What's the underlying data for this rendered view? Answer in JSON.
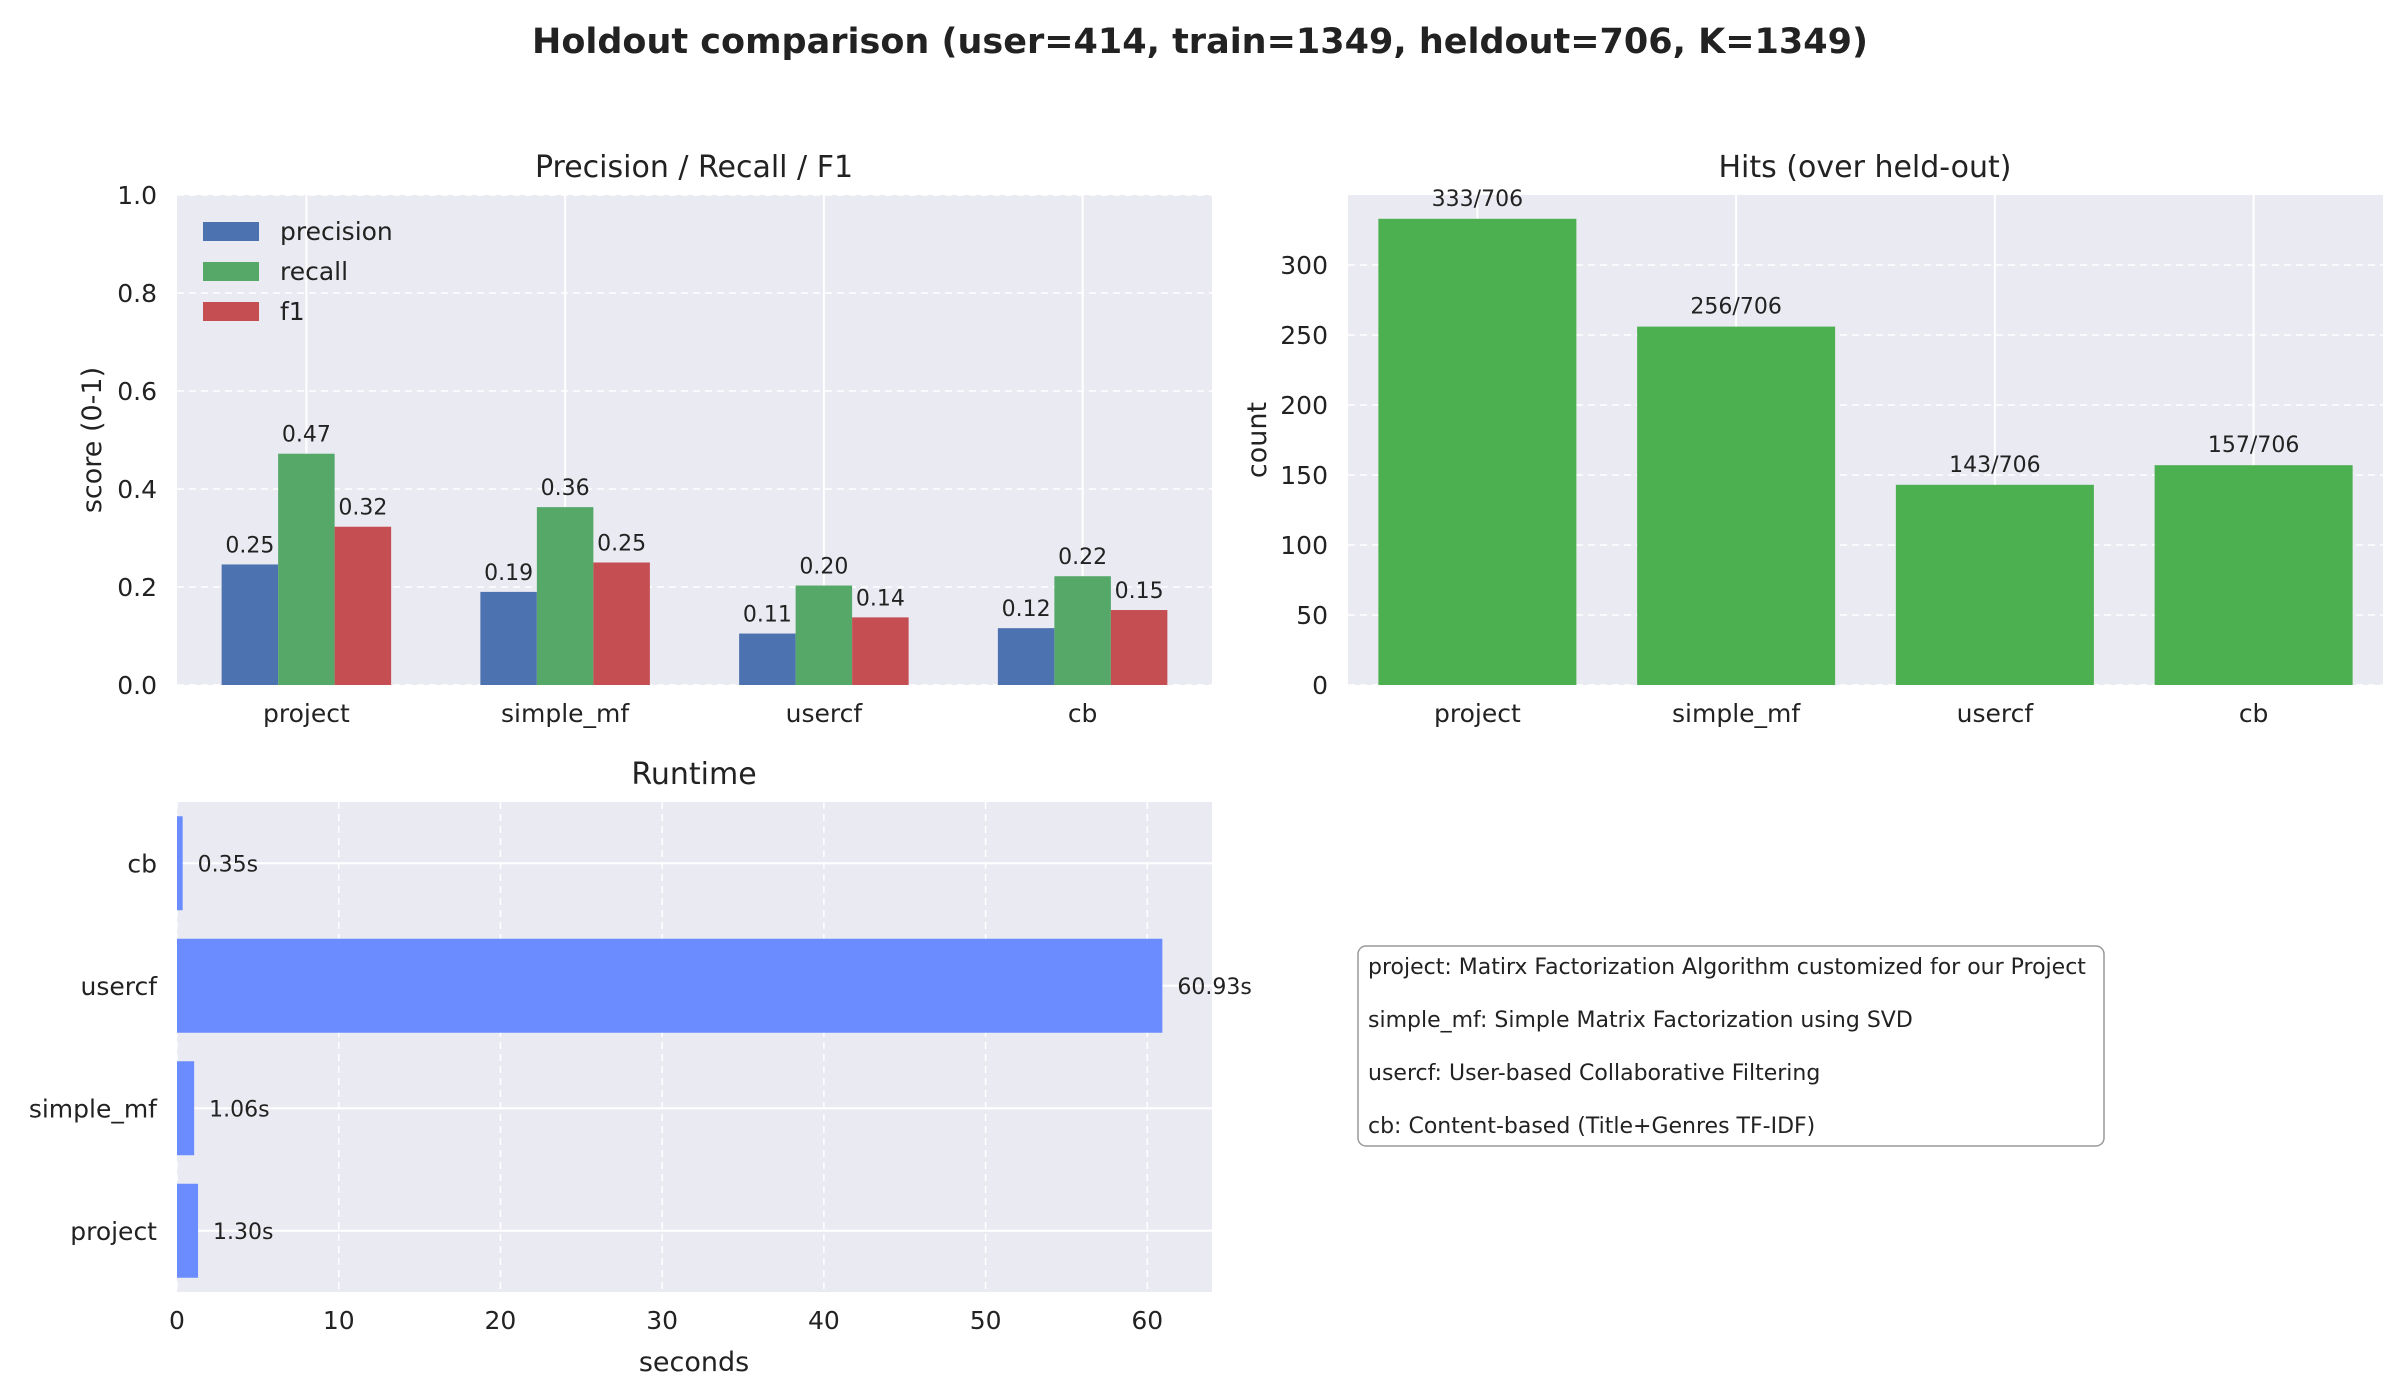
{
  "figure": {
    "title": "Holdout comparison (user=414, train=1349, heldout=706, K=1349)"
  },
  "chart_data": [
    {
      "id": "prf",
      "type": "bar",
      "title": "Precision / Recall / F1",
      "xlabel": "",
      "ylabel": "score (0-1)",
      "ylim": [
        0,
        1
      ],
      "yticks": [
        "0.0",
        "0.2",
        "0.4",
        "0.6",
        "0.8",
        "1.0"
      ],
      "grid": true,
      "legend_position": "top-left",
      "categories": [
        "project",
        "simple_mf",
        "usercf",
        "cb"
      ],
      "series": [
        {
          "name": "precision",
          "color": "#4c72b0",
          "values": [
            0.246,
            0.19,
            0.105,
            0.116
          ],
          "labels": [
            "0.25",
            "0.19",
            "0.11",
            "0.12"
          ]
        },
        {
          "name": "recall",
          "color": "#55a868",
          "values": [
            0.472,
            0.363,
            0.203,
            0.222
          ],
          "labels": [
            "0.47",
            "0.36",
            "0.20",
            "0.22"
          ]
        },
        {
          "name": "f1",
          "color": "#c44e52",
          "values": [
            0.323,
            0.25,
            0.138,
            0.153
          ],
          "labels": [
            "0.32",
            "0.25",
            "0.14",
            "0.15"
          ]
        }
      ]
    },
    {
      "id": "hits",
      "type": "bar",
      "title": "Hits (over held-out)",
      "xlabel": "",
      "ylabel": "count",
      "ylim": [
        0,
        350
      ],
      "yticks": [
        "0",
        "50",
        "100",
        "150",
        "200",
        "250",
        "300"
      ],
      "grid": true,
      "color": "#4caf50",
      "categories": [
        "project",
        "simple_mf",
        "usercf",
        "cb"
      ],
      "values": [
        333,
        256,
        143,
        157
      ],
      "labels": [
        "333/706",
        "256/706",
        "143/706",
        "157/706"
      ]
    },
    {
      "id": "runtime",
      "type": "bar",
      "orientation": "horizontal",
      "title": "Runtime",
      "xlabel": "seconds",
      "ylabel": "",
      "xlim": [
        0,
        64
      ],
      "xticks": [
        "0",
        "10",
        "20",
        "30",
        "40",
        "50",
        "60"
      ],
      "grid": true,
      "color": "#6b8cff",
      "categories": [
        "cb",
        "usercf",
        "simple_mf",
        "project"
      ],
      "values": [
        0.35,
        60.93,
        1.06,
        1.3
      ],
      "labels": [
        "0.35s",
        "60.93s",
        "1.06s",
        "1.30s"
      ]
    }
  ],
  "legend_box": {
    "lines": [
      "project: Matirx Factorization Algorithm customized  for our Project",
      "simple_mf: Simple Matrix Factorization using SVD",
      "usercf: User-based Collaborative Filtering",
      "cb: Content-based (Title+Genres TF-IDF)"
    ]
  }
}
